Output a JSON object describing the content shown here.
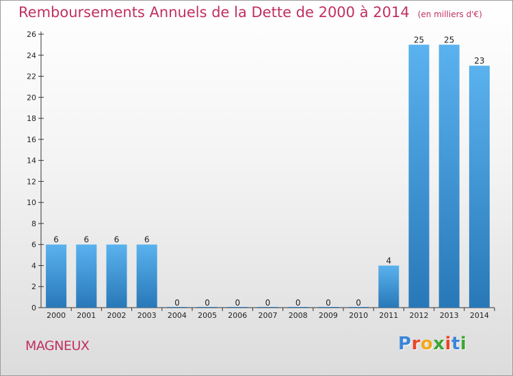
{
  "header": {
    "title": "Remboursements Annuels de la Dette de 2000 à 2014",
    "unit": "(en milliers d'€)"
  },
  "footer": {
    "commune": "MAGNEUX",
    "logo_letters": [
      "P",
      "r",
      "o",
      "x",
      "i",
      "t",
      "i"
    ],
    "logo_colors": [
      "#3a86d8",
      "#e8462a",
      "#f2a81d",
      "#3fa535",
      "#e8462a",
      "#3a86d8",
      "#3fa535"
    ]
  },
  "colors": {
    "title": "#c0305f",
    "bar_light": "#5ab2ee",
    "bar_dark": "#2878b8",
    "axis": "#333333"
  },
  "chart_data": {
    "type": "bar",
    "title": "Remboursements Annuels de la Dette de 2000 à 2014",
    "subtitle": "(en milliers d'€)",
    "xlabel": "",
    "ylabel": "",
    "categories": [
      "2000",
      "2001",
      "2002",
      "2003",
      "2004",
      "2005",
      "2006",
      "2007",
      "2008",
      "2009",
      "2010",
      "2011",
      "2012",
      "2013",
      "2014"
    ],
    "values": [
      6,
      6,
      6,
      6,
      0,
      0,
      0,
      0,
      0,
      0,
      0,
      4,
      25,
      25,
      23
    ],
    "ylim": [
      0,
      26
    ],
    "yticks": [
      0,
      2,
      4,
      6,
      8,
      10,
      12,
      14,
      16,
      18,
      20,
      22,
      24,
      26
    ],
    "grid": false,
    "legend": "none"
  }
}
